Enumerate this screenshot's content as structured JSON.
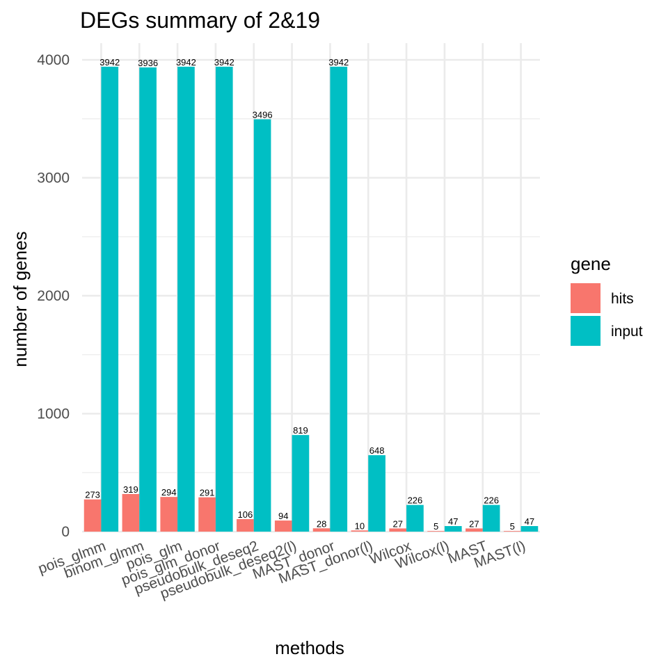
{
  "chart_data": {
    "type": "bar",
    "title": "DEGs summary of  2&19",
    "xlabel": "methods",
    "ylabel": "number of genes",
    "ylim": [
      0,
      4200
    ],
    "yticks": [
      0,
      1000,
      2000,
      3000,
      4000
    ],
    "grid": true,
    "legend_title": "gene",
    "legend_position": "right",
    "categories": [
      "pois_glmm",
      "binom_glmm",
      "pois_glm",
      "pois_glm_donor",
      "pseudobulk_deseq2",
      "pseudobulk_deseq2(l)",
      "MAST_donor",
      "MAST_donor(l)",
      "Wilcox",
      "Wilcox(l)",
      "MAST",
      "MAST(l)"
    ],
    "series": [
      {
        "name": "hits",
        "color": "#F8766D",
        "values": [
          273,
          319,
          294,
          291,
          106,
          94,
          28,
          10,
          27,
          5,
          27,
          5
        ]
      },
      {
        "name": "input",
        "color": "#00BFC4",
        "values": [
          3942,
          3936,
          3942,
          3942,
          3496,
          819,
          3942,
          648,
          226,
          47,
          226,
          47
        ]
      }
    ]
  }
}
